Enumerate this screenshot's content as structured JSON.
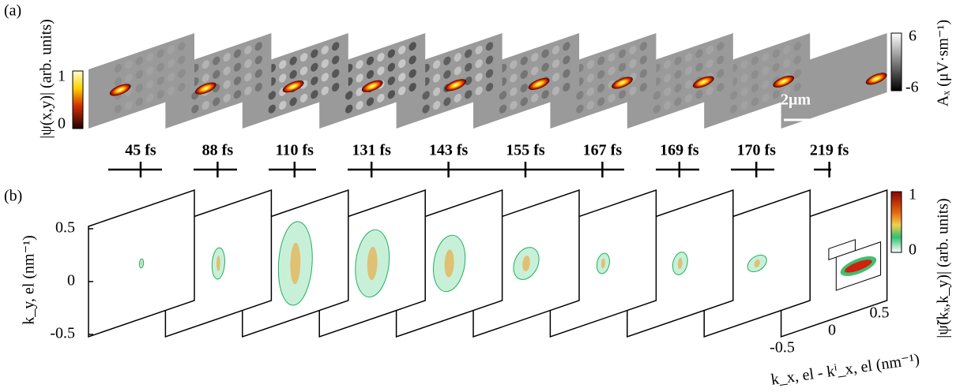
{
  "panel_a": {
    "label": "(a)",
    "colorbar_left": {
      "label": "|ψ(x,y)| (arb. units)",
      "ticks": [
        "1",
        "0"
      ]
    },
    "colorbar_right": {
      "label": "Aₓ (μV·sm⁻¹)",
      "ticks": [
        "6",
        "-6"
      ]
    },
    "scale_bar": "2μm"
  },
  "timeline": [
    "45 fs",
    "88 fs",
    "110 fs",
    "131 fs",
    "143 fs",
    "155 fs",
    "167 fs",
    "169 fs",
    "170 fs",
    "219 fs"
  ],
  "panel_b": {
    "label": "(b)",
    "y_axis": {
      "label": "k_y, el (nm⁻¹)",
      "ticks": [
        "0.5",
        "0",
        "-0.5"
      ]
    },
    "x_axis": {
      "label": "k_x, el - kⁱ_x, el (nm⁻¹)",
      "ticks": [
        "-0.5",
        "0",
        "0.5"
      ]
    },
    "colorbar": {
      "label": "|ψ̃(kₓ,k_y)| (arb. units)",
      "ticks": [
        "1",
        "0"
      ]
    }
  }
}
